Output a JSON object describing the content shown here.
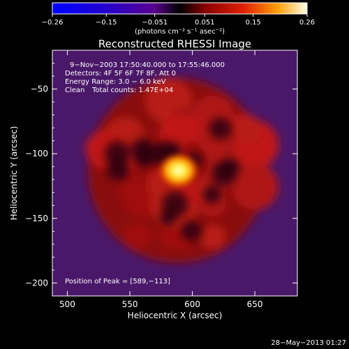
{
  "chart_data": {
    "type": "heatmap",
    "title": "Reconstructed RHESSI Image",
    "xlabel": "Heliocentric X (arcsec)",
    "ylabel": "Heliocentric Y (arcsec)",
    "xlim": [
      488,
      684
    ],
    "ylim": [
      -210,
      -20
    ],
    "xticks": [
      500,
      550,
      600,
      650
    ],
    "yticks": [
      -50,
      -100,
      -150,
      -200
    ],
    "colorbar": {
      "unit_label": "(photons cm⁻² s⁻¹ asec⁻²)",
      "range": [
        -0.26,
        0.26
      ],
      "tick_values": [
        -0.26,
        -0.15,
        -0.051,
        0.051,
        0.15,
        0.26
      ],
      "tick_labels": [
        "−0.26",
        "−0.15",
        "−0.051",
        "0.051",
        "0.15",
        "0.26"
      ]
    },
    "info": {
      "time": "9−Nov−2003 17:50:40.000 to 17:55:46.000",
      "detectors": "Detectors: 4F 5F 6F 7F 8F, Att 0",
      "energy": "Energy Range: 3.0 − 6.0 keV",
      "method": "Clean",
      "counts": "Total counts: 1.47E+04"
    },
    "peak": {
      "label": "Position of Peak = [589,−113]",
      "x": 589,
      "y": -113
    },
    "ring": {
      "center_x": 588,
      "center_y": -113,
      "radius": 68
    },
    "timestamp": "28−May−2013 01:27"
  }
}
